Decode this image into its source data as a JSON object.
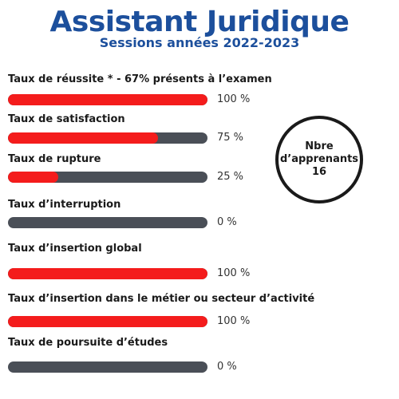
{
  "header": {
    "title": "Assistant Juridique",
    "subtitle": "Sessions années 2022-2023"
  },
  "colors": {
    "title": "#1c4f9c",
    "bar_fill": "#f41c1c",
    "bar_track": "#4a4f57"
  },
  "rows": [
    {
      "label": "Taux de réussite * - 67% présents à l’examen",
      "value": 100,
      "value_text": "100 %"
    },
    {
      "label": "Taux de satisfaction",
      "value": 75,
      "value_text": "75 %"
    },
    {
      "label": "Taux de rupture",
      "value": 25,
      "value_text": "25 %"
    },
    {
      "label": "Taux d’interruption",
      "value": 0,
      "value_text": "0 %"
    },
    {
      "label": "Taux d’insertion global",
      "value": 100,
      "value_text": "100 %"
    },
    {
      "label": "Taux d’insertion dans le métier ou secteur d’activité",
      "value": 100,
      "value_text": "100 %"
    },
    {
      "label": "Taux de poursuite d’études",
      "value": 0,
      "value_text": "0 %"
    }
  ],
  "learners": {
    "label_line1": "Nbre",
    "label_line2": "d’apprenants",
    "count": "16"
  }
}
